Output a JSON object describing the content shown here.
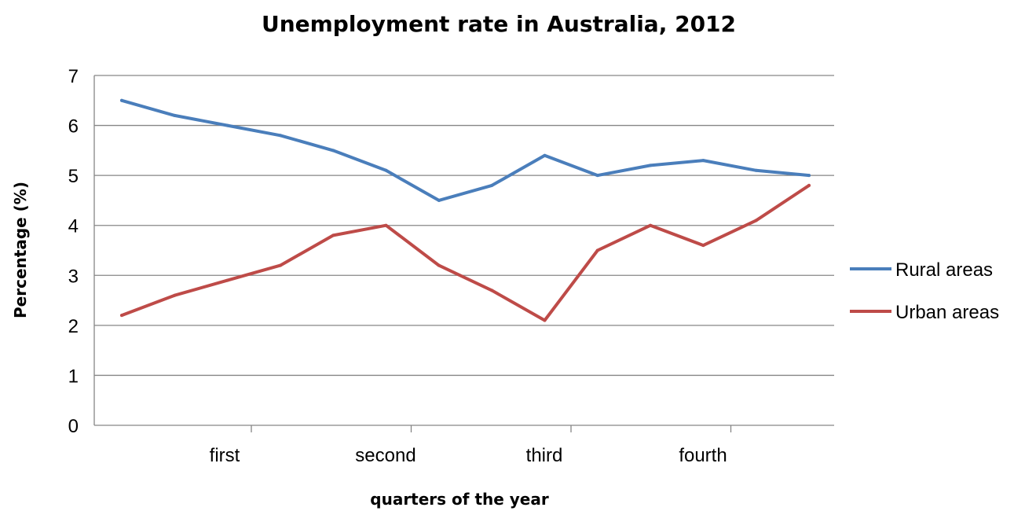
{
  "chart_data": {
    "type": "line",
    "title": "Unemployment rate in Australia, 2012",
    "xlabel": "quarters of the year",
    "ylabel": "Percentage (%)",
    "ylim": [
      0,
      7
    ],
    "yticks": [
      "0",
      "1",
      "2",
      "3",
      "4",
      "5",
      "6",
      "7"
    ],
    "categories": [
      "first",
      "second",
      "third",
      "fourth"
    ],
    "grid": true,
    "legend_position": "right",
    "x": [
      1,
      2,
      3,
      4,
      5,
      6,
      7,
      8,
      9,
      10,
      11,
      12,
      13,
      14
    ],
    "series": [
      {
        "name": "Rural areas",
        "color": "#4a7ebb",
        "values": [
          6.5,
          6.2,
          6.0,
          5.8,
          5.5,
          5.1,
          4.5,
          4.8,
          5.4,
          5.0,
          5.2,
          5.3,
          5.1,
          5.0
        ]
      },
      {
        "name": "Urban areas",
        "color": "#be4b48",
        "values": [
          2.2,
          2.6,
          2.9,
          3.2,
          3.8,
          4.0,
          3.2,
          2.7,
          2.1,
          3.5,
          4.0,
          3.6,
          4.1,
          4.8
        ]
      }
    ]
  }
}
